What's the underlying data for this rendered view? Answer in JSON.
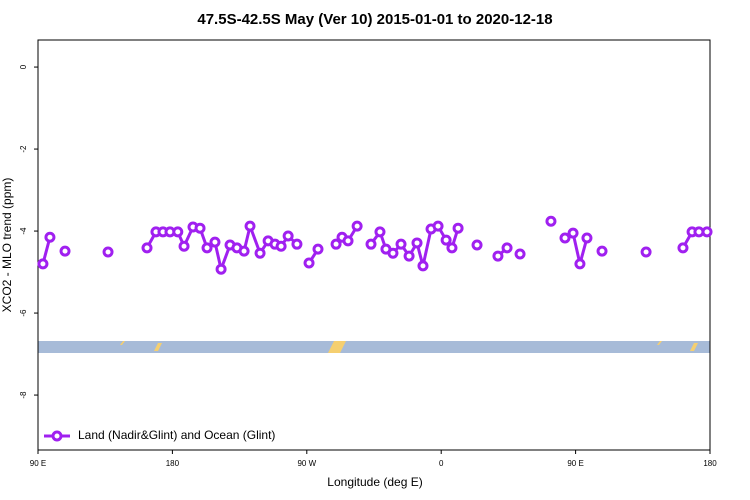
{
  "chart_data": {
    "type": "line",
    "title": "47.5S-42.5S May (Ver 10)   2015-01-01 to 2020-12-18",
    "xlabel": "Longitude (deg E)",
    "ylabel": "XCO2 - MLO trend (ppm)",
    "xlim": [
      90,
      540
    ],
    "ylim": [
      -9.34,
      0.66
    ],
    "xticks": [
      {
        "value": 90,
        "label": "90 E"
      },
      180,
      {
        "value": 270,
        "label": "90 W"
      },
      {
        "value": 360,
        "label": "0"
      },
      {
        "value": 450,
        "label": "90 E"
      },
      {
        "value": 540,
        "label": "180"
      }
    ],
    "yticks": [
      0,
      -2,
      -4,
      -6,
      -8
    ],
    "legend": "bottom-left",
    "series": [
      {
        "name": "Land (Nadir&Glint) and Ocean (Glint)",
        "color": "#a020f0",
        "x": [
          93.3,
          98.0,
          null,
          108.1,
          null,
          136.9,
          null,
          163.0,
          169.0,
          173.7,
          178.4,
          183.6,
          187.8,
          193.8,
          198.5,
          203.2,
          208.5,
          212.6,
          218.6,
          223.2,
          228.0,
          232.0,
          238.7,
          244.1,
          248.7,
          252.8,
          257.5,
          263.4,
          null,
          271.5,
          277.5,
          null,
          289.6,
          293.6,
          297.6,
          303.7,
          null,
          313.0,
          319.0,
          323.0,
          327.7,
          333.1,
          338.5,
          343.8,
          347.8,
          353.2,
          357.9,
          363.3,
          367.2,
          371.3,
          null,
          384.0,
          null,
          398.0,
          404.1,
          null,
          412.8,
          null,
          433.5,
          null,
          442.9,
          448.3,
          452.9,
          457.6,
          null,
          467.7,
          null,
          497.2,
          null,
          521.9,
          528.0,
          532.6,
          538.0
        ],
        "values": [
          -4.8,
          -4.15,
          null,
          -4.49,
          null,
          -4.51,
          null,
          -4.41,
          -4.02,
          -4.02,
          -4.02,
          -4.02,
          -4.37,
          -3.9,
          -3.93,
          -4.41,
          -4.27,
          -4.93,
          -4.34,
          -4.41,
          -4.49,
          -3.88,
          -4.54,
          -4.24,
          -4.32,
          -4.37,
          -4.12,
          -4.32,
          null,
          -4.78,
          -4.44,
          null,
          -4.32,
          -4.15,
          -4.24,
          -3.88,
          null,
          -4.32,
          -4.02,
          -4.44,
          -4.54,
          -4.32,
          -4.61,
          -4.29,
          -4.85,
          -3.95,
          -3.88,
          -4.22,
          -4.41,
          -3.93,
          null,
          -4.34,
          null,
          -4.61,
          -4.41,
          null,
          -4.56,
          null,
          -3.76,
          null,
          -4.17,
          -4.05,
          -4.8,
          -4.17,
          null,
          -4.49,
          null,
          -4.51,
          null,
          -4.41,
          -4.02,
          -4.02,
          -4.02
        ]
      }
    ]
  }
}
